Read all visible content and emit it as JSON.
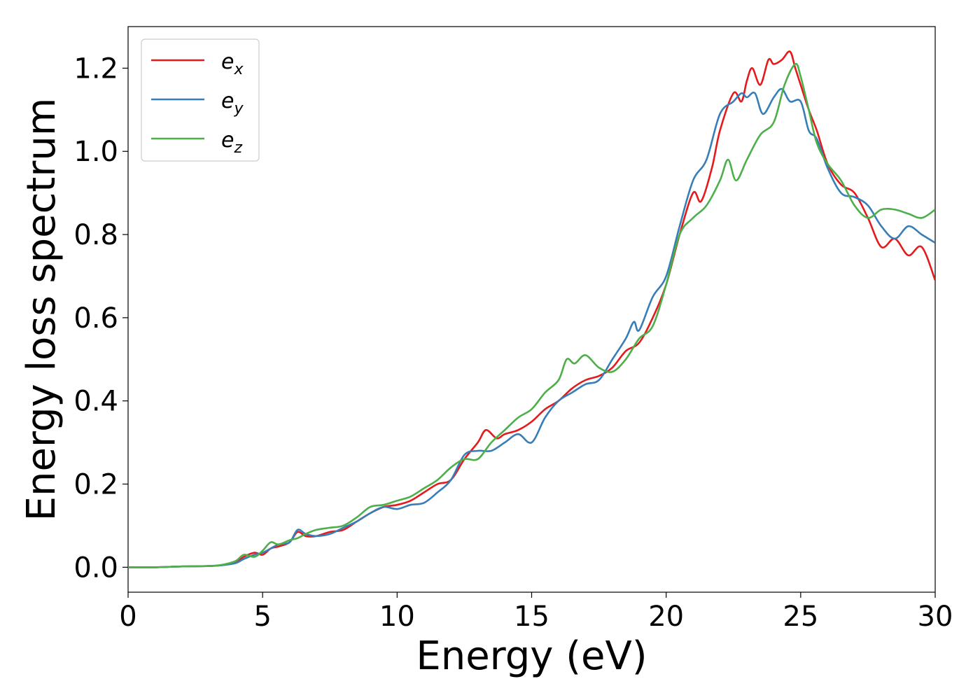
{
  "chart_data": {
    "type": "line",
    "xlabel": "Energy (eV)",
    "ylabel": "Energy loss spectrum",
    "xlim": [
      0,
      30
    ],
    "ylim": [
      -0.06,
      1.3
    ],
    "x_ticks": [
      0,
      5,
      10,
      15,
      20,
      25,
      30
    ],
    "x_tick_labels": [
      "0",
      "5",
      "10",
      "15",
      "20",
      "25",
      "30"
    ],
    "y_ticks": [
      0.0,
      0.2,
      0.4,
      0.6,
      0.8,
      1.0,
      1.2
    ],
    "y_tick_labels": [
      "0.0",
      "0.2",
      "0.4",
      "0.6",
      "0.8",
      "1.0",
      "1.2"
    ],
    "grid": false,
    "legend_position": "top-left",
    "series": [
      {
        "name": "e_x",
        "legend_base": "e",
        "legend_sub": "x",
        "color": "#e41a1c",
        "x": [
          0,
          1,
          2,
          3,
          3.5,
          4,
          4.3,
          4.7,
          5,
          5.3,
          5.6,
          6,
          6.3,
          6.6,
          7,
          7.5,
          8,
          8.5,
          9,
          9.5,
          10,
          10.5,
          11,
          11.5,
          12,
          12.5,
          13,
          13.3,
          13.7,
          14,
          14.5,
          15,
          15.5,
          16,
          16.5,
          17,
          17.5,
          18,
          18.5,
          19,
          19.5,
          20,
          20.5,
          21,
          21.3,
          21.7,
          22,
          22.5,
          22.8,
          23,
          23.2,
          23.5,
          23.8,
          24,
          24.3,
          24.6,
          24.8,
          25,
          25.3,
          25.6,
          26,
          26.5,
          27,
          27.5,
          28,
          28.5,
          29,
          29.5,
          30
        ],
        "y": [
          0.0,
          0.0,
          0.002,
          0.003,
          0.005,
          0.012,
          0.025,
          0.035,
          0.03,
          0.045,
          0.05,
          0.06,
          0.085,
          0.075,
          0.075,
          0.085,
          0.09,
          0.11,
          0.13,
          0.145,
          0.15,
          0.16,
          0.18,
          0.2,
          0.21,
          0.26,
          0.3,
          0.33,
          0.31,
          0.32,
          0.33,
          0.35,
          0.38,
          0.4,
          0.43,
          0.45,
          0.46,
          0.48,
          0.52,
          0.54,
          0.6,
          0.68,
          0.8,
          0.9,
          0.88,
          0.96,
          1.05,
          1.14,
          1.12,
          1.17,
          1.2,
          1.16,
          1.22,
          1.21,
          1.22,
          1.24,
          1.2,
          1.16,
          1.1,
          1.05,
          0.97,
          0.92,
          0.9,
          0.84,
          0.77,
          0.79,
          0.75,
          0.77,
          0.69
        ]
      },
      {
        "name": "e_y",
        "legend_base": "e",
        "legend_sub": "y",
        "color": "#377eb8",
        "x": [
          0,
          1,
          2,
          3,
          3.5,
          4,
          4.3,
          4.7,
          5,
          5.3,
          5.6,
          6,
          6.3,
          6.6,
          7,
          7.5,
          8,
          8.5,
          9,
          9.5,
          10,
          10.5,
          11,
          11.5,
          12,
          12.5,
          13,
          13.5,
          14,
          14.5,
          15,
          15.5,
          16,
          16.5,
          17,
          17.5,
          18,
          18.5,
          18.8,
          19,
          19.5,
          20,
          20.5,
          21,
          21.5,
          22,
          22.5,
          22.8,
          23,
          23.3,
          23.6,
          24,
          24.3,
          24.6,
          25,
          25.3,
          25.6,
          26,
          26.5,
          27,
          27.5,
          28,
          28.5,
          29,
          29.5,
          30
        ],
        "y": [
          0.0,
          0.0,
          0.002,
          0.003,
          0.005,
          0.01,
          0.02,
          0.03,
          0.035,
          0.045,
          0.055,
          0.06,
          0.09,
          0.08,
          0.075,
          0.08,
          0.095,
          0.11,
          0.13,
          0.145,
          0.14,
          0.15,
          0.155,
          0.18,
          0.21,
          0.27,
          0.28,
          0.28,
          0.3,
          0.32,
          0.3,
          0.36,
          0.4,
          0.42,
          0.44,
          0.45,
          0.5,
          0.55,
          0.59,
          0.57,
          0.65,
          0.7,
          0.82,
          0.93,
          0.98,
          1.09,
          1.12,
          1.14,
          1.13,
          1.14,
          1.09,
          1.13,
          1.15,
          1.12,
          1.12,
          1.05,
          1.03,
          0.96,
          0.9,
          0.89,
          0.87,
          0.82,
          0.79,
          0.82,
          0.8,
          0.78
        ]
      },
      {
        "name": "e_z",
        "legend_base": "e",
        "legend_sub": "z",
        "color": "#4daf4a",
        "x": [
          0,
          1,
          2,
          3,
          3.5,
          4,
          4.3,
          4.7,
          5,
          5.3,
          5.6,
          6,
          6.3,
          6.6,
          7,
          7.5,
          8,
          8.5,
          9,
          9.5,
          10,
          10.5,
          11,
          11.5,
          12,
          12.5,
          13,
          13.5,
          14,
          14.5,
          15,
          15.5,
          16,
          16.3,
          16.6,
          17,
          17.5,
          18,
          18.5,
          19,
          19.5,
          20,
          20.5,
          21,
          21.5,
          22,
          22.3,
          22.6,
          23,
          23.5,
          24,
          24.4,
          24.8,
          25,
          25.3,
          25.6,
          26,
          26.5,
          27,
          27.5,
          28,
          28.5,
          29,
          29.5,
          30
        ],
        "y": [
          0.0,
          0.0,
          0.002,
          0.003,
          0.006,
          0.015,
          0.03,
          0.025,
          0.04,
          0.06,
          0.055,
          0.065,
          0.07,
          0.08,
          0.09,
          0.095,
          0.1,
          0.12,
          0.145,
          0.15,
          0.16,
          0.17,
          0.19,
          0.21,
          0.24,
          0.26,
          0.26,
          0.3,
          0.33,
          0.36,
          0.38,
          0.42,
          0.45,
          0.5,
          0.49,
          0.51,
          0.48,
          0.47,
          0.5,
          0.55,
          0.58,
          0.68,
          0.8,
          0.84,
          0.87,
          0.93,
          0.98,
          0.93,
          0.98,
          1.04,
          1.07,
          1.16,
          1.21,
          1.18,
          1.1,
          1.02,
          0.97,
          0.93,
          0.87,
          0.84,
          0.86,
          0.86,
          0.85,
          0.84,
          0.86
        ]
      }
    ]
  }
}
